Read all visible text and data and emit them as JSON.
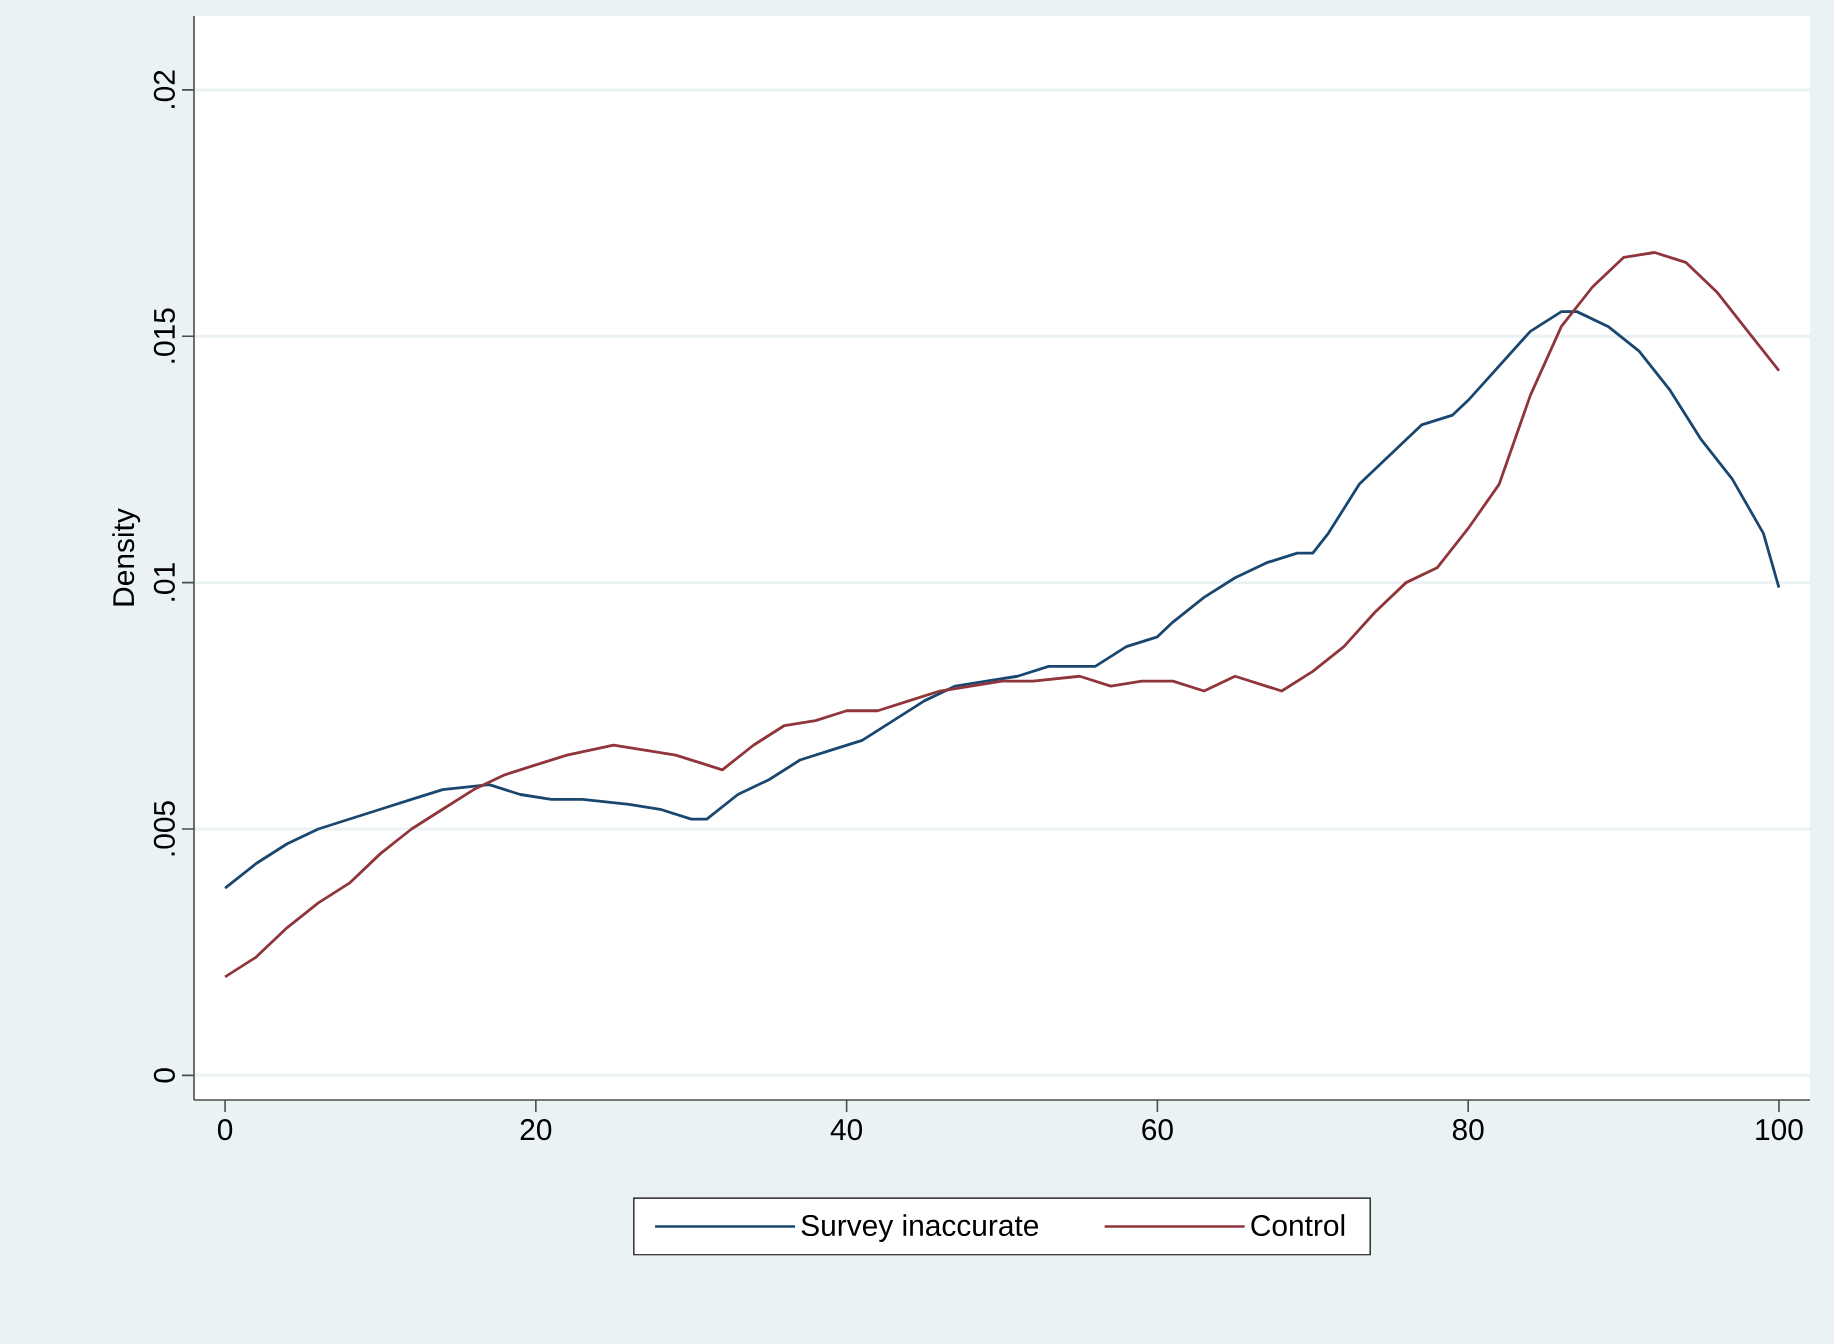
{
  "chart_data": {
    "type": "line",
    "ylabel": "Density",
    "xlim": [
      -2,
      102
    ],
    "ylim": [
      -0.0005,
      0.0215
    ],
    "xticks": [
      0,
      20,
      40,
      60,
      80,
      100
    ],
    "yticks": [
      0,
      {
        "value": 0.005,
        "label": ".005"
      },
      {
        "value": 0.01,
        "label": ".01"
      },
      {
        "value": 0.015,
        "label": ".015"
      },
      {
        "value": 0.02,
        "label": ".02"
      }
    ],
    "grid": "y",
    "legend": "bottom",
    "marker": "none",
    "line_style": "solid",
    "series": [
      {
        "name": "Survey inaccurate",
        "color": "#1a476f",
        "x": [
          0,
          2,
          4,
          6,
          8,
          10,
          12,
          14,
          17,
          19,
          21,
          23,
          26,
          28,
          30,
          31,
          33,
          35,
          37,
          39,
          41,
          43,
          45,
          47,
          49,
          51,
          53,
          56,
          58,
          60,
          61,
          63,
          65,
          67,
          69,
          70,
          71,
          73,
          75,
          77,
          79,
          80,
          82,
          84,
          86,
          87,
          89,
          91,
          93,
          95,
          97,
          99,
          100
        ],
        "values": [
          0.0038,
          0.0043,
          0.0047,
          0.005,
          0.0052,
          0.0054,
          0.0056,
          0.0058,
          0.0059,
          0.0057,
          0.0056,
          0.0056,
          0.0055,
          0.0054,
          0.0052,
          0.0052,
          0.0057,
          0.006,
          0.0064,
          0.0066,
          0.0068,
          0.0072,
          0.0076,
          0.0079,
          0.008,
          0.0081,
          0.0083,
          0.0083,
          0.0087,
          0.0089,
          0.0092,
          0.0097,
          0.0101,
          0.0104,
          0.0106,
          0.0106,
          0.011,
          0.012,
          0.0126,
          0.0132,
          0.0134,
          0.0137,
          0.0144,
          0.0151,
          0.0155,
          0.0155,
          0.0152,
          0.0147,
          0.0139,
          0.0129,
          0.0121,
          0.011,
          0.0099
        ]
      },
      {
        "name": "Control",
        "color": "#90353b",
        "x": [
          0,
          2,
          4,
          6,
          8,
          10,
          12,
          14,
          16,
          18,
          20,
          22,
          25,
          27,
          29,
          31,
          32,
          34,
          36,
          38,
          40,
          42,
          44,
          46,
          48,
          50,
          52,
          55,
          57,
          59,
          61,
          63,
          65,
          67,
          68,
          70,
          72,
          74,
          76,
          78,
          80,
          82,
          84,
          86,
          88,
          90,
          92,
          94,
          96,
          98,
          100
        ],
        "values": [
          0.002,
          0.0024,
          0.003,
          0.0035,
          0.0039,
          0.0045,
          0.005,
          0.0054,
          0.0058,
          0.0061,
          0.0063,
          0.0065,
          0.0067,
          0.0066,
          0.0065,
          0.0063,
          0.0062,
          0.0067,
          0.0071,
          0.0072,
          0.0074,
          0.0074,
          0.0076,
          0.0078,
          0.0079,
          0.008,
          0.008,
          0.0081,
          0.0079,
          0.008,
          0.008,
          0.0078,
          0.0081,
          0.0079,
          0.0078,
          0.0082,
          0.0087,
          0.0094,
          0.01,
          0.0103,
          0.0111,
          0.012,
          0.0138,
          0.0152,
          0.016,
          0.0166,
          0.0167,
          0.0165,
          0.0159,
          0.0151,
          0.0143
        ]
      }
    ]
  }
}
